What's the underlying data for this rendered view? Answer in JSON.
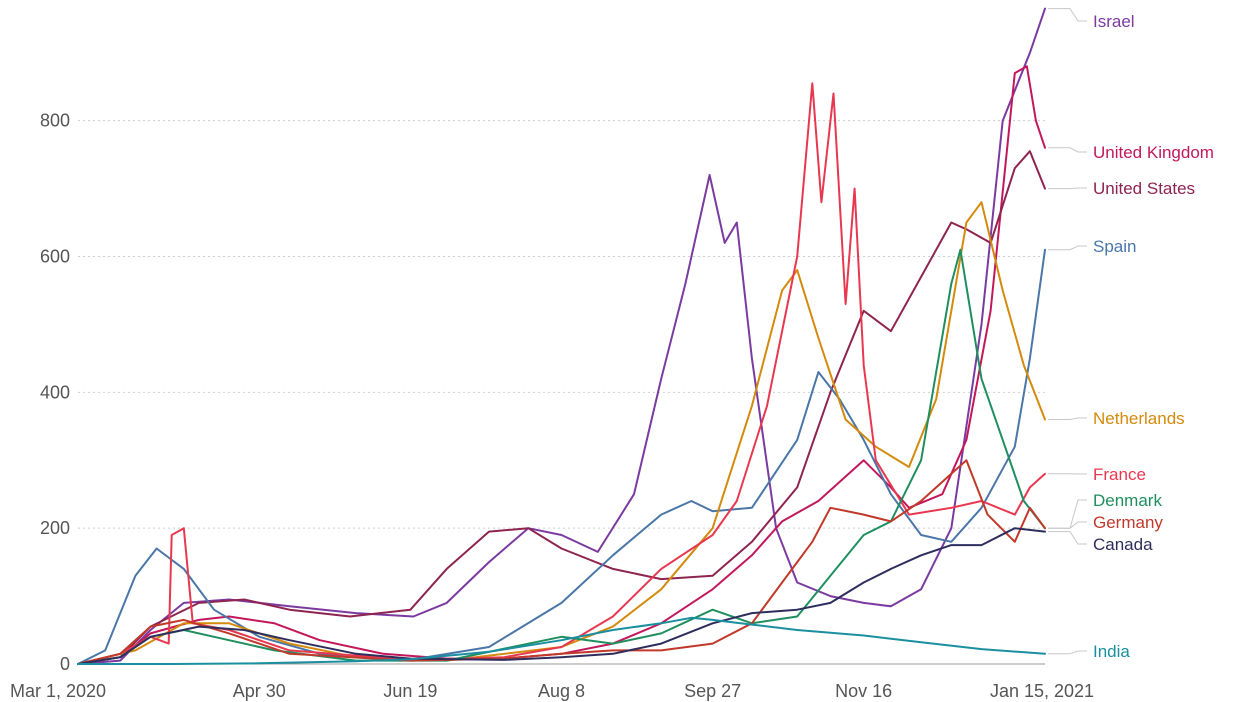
{
  "chart_data": {
    "type": "line",
    "title": "",
    "xlabel": "",
    "ylabel": "",
    "xlim": [
      "2020-03-01",
      "2021-01-15"
    ],
    "ylim": [
      0,
      960
    ],
    "grid": true,
    "legend": "direct labels at right end",
    "x_ticks": [
      "2020-03-01",
      "2020-04-30",
      "2020-06-19",
      "2020-08-08",
      "2020-09-27",
      "2020-11-16",
      "2021-01-15"
    ],
    "x_tick_labels": [
      "Mar 1, 2020",
      "Apr 30",
      "Jun 19",
      "Aug 8",
      "Sep 27",
      "Nov 16",
      "Jan 15, 2021"
    ],
    "y_ticks": [
      0,
      200,
      400,
      600,
      800
    ],
    "y_tick_labels": [
      "0",
      "200",
      "400",
      "600",
      "800"
    ],
    "series": [
      {
        "name": "Israel",
        "color": "#7b3aa0",
        "points": [
          [
            "2020-03-01",
            0
          ],
          [
            "2020-03-15",
            5
          ],
          [
            "2020-03-25",
            50
          ],
          [
            "2020-04-05",
            90
          ],
          [
            "2020-04-20",
            95
          ],
          [
            "2020-05-10",
            85
          ],
          [
            "2020-06-01",
            75
          ],
          [
            "2020-06-20",
            70
          ],
          [
            "2020-07-01",
            90
          ],
          [
            "2020-07-15",
            150
          ],
          [
            "2020-07-28",
            200
          ],
          [
            "2020-08-08",
            190
          ],
          [
            "2020-08-20",
            165
          ],
          [
            "2020-09-01",
            250
          ],
          [
            "2020-09-10",
            420
          ],
          [
            "2020-09-18",
            560
          ],
          [
            "2020-09-26",
            720
          ],
          [
            "2020-10-01",
            620
          ],
          [
            "2020-10-05",
            650
          ],
          [
            "2020-10-10",
            450
          ],
          [
            "2020-10-18",
            200
          ],
          [
            "2020-10-25",
            120
          ],
          [
            "2020-11-05",
            100
          ],
          [
            "2020-11-16",
            90
          ],
          [
            "2020-11-25",
            85
          ],
          [
            "2020-12-05",
            110
          ],
          [
            "2020-12-15",
            200
          ],
          [
            "2020-12-25",
            500
          ],
          [
            "2021-01-01",
            800
          ],
          [
            "2021-01-10",
            900
          ],
          [
            "2021-01-15",
            965
          ]
        ]
      },
      {
        "name": "United Kingdom",
        "color": "#c2185b",
        "points": [
          [
            "2020-03-01",
            0
          ],
          [
            "2020-03-15",
            10
          ],
          [
            "2020-03-25",
            45
          ],
          [
            "2020-04-10",
            65
          ],
          [
            "2020-04-20",
            70
          ],
          [
            "2020-05-05",
            60
          ],
          [
            "2020-05-20",
            35
          ],
          [
            "2020-06-10",
            15
          ],
          [
            "2020-07-01",
            8
          ],
          [
            "2020-07-20",
            8
          ],
          [
            "2020-08-08",
            15
          ],
          [
            "2020-08-25",
            30
          ],
          [
            "2020-09-10",
            60
          ],
          [
            "2020-09-27",
            110
          ],
          [
            "2020-10-10",
            160
          ],
          [
            "2020-10-20",
            210
          ],
          [
            "2020-11-01",
            240
          ],
          [
            "2020-11-16",
            300
          ],
          [
            "2020-11-25",
            260
          ],
          [
            "2020-12-01",
            230
          ],
          [
            "2020-12-12",
            250
          ],
          [
            "2020-12-20",
            330
          ],
          [
            "2020-12-28",
            520
          ],
          [
            "2021-01-05",
            870
          ],
          [
            "2021-01-09",
            880
          ],
          [
            "2021-01-12",
            800
          ],
          [
            "2021-01-15",
            760
          ]
        ]
      },
      {
        "name": "United States",
        "color": "#8e2450",
        "points": [
          [
            "2020-03-01",
            0
          ],
          [
            "2020-03-15",
            10
          ],
          [
            "2020-03-25",
            55
          ],
          [
            "2020-04-10",
            90
          ],
          [
            "2020-04-25",
            95
          ],
          [
            "2020-05-10",
            80
          ],
          [
            "2020-05-30",
            70
          ],
          [
            "2020-06-19",
            80
          ],
          [
            "2020-07-01",
            140
          ],
          [
            "2020-07-15",
            195
          ],
          [
            "2020-07-28",
            200
          ],
          [
            "2020-08-08",
            170
          ],
          [
            "2020-08-25",
            140
          ],
          [
            "2020-09-10",
            125
          ],
          [
            "2020-09-27",
            130
          ],
          [
            "2020-10-10",
            180
          ],
          [
            "2020-10-25",
            260
          ],
          [
            "2020-11-05",
            400
          ],
          [
            "2020-11-16",
            520
          ],
          [
            "2020-11-25",
            490
          ],
          [
            "2020-12-05",
            570
          ],
          [
            "2020-12-15",
            650
          ],
          [
            "2020-12-20",
            640
          ],
          [
            "2020-12-28",
            620
          ],
          [
            "2021-01-05",
            730
          ],
          [
            "2021-01-10",
            755
          ],
          [
            "2021-01-15",
            700
          ]
        ]
      },
      {
        "name": "Spain",
        "color": "#4a76a8",
        "points": [
          [
            "2020-03-01",
            0
          ],
          [
            "2020-03-10",
            20
          ],
          [
            "2020-03-20",
            130
          ],
          [
            "2020-03-27",
            170
          ],
          [
            "2020-04-05",
            140
          ],
          [
            "2020-04-15",
            80
          ],
          [
            "2020-04-30",
            40
          ],
          [
            "2020-05-20",
            15
          ],
          [
            "2020-06-19",
            6
          ],
          [
            "2020-07-15",
            25
          ],
          [
            "2020-08-08",
            90
          ],
          [
            "2020-08-25",
            160
          ],
          [
            "2020-09-10",
            220
          ],
          [
            "2020-09-20",
            240
          ],
          [
            "2020-09-27",
            225
          ],
          [
            "2020-10-10",
            230
          ],
          [
            "2020-10-25",
            330
          ],
          [
            "2020-11-01",
            430
          ],
          [
            "2020-11-08",
            390
          ],
          [
            "2020-11-16",
            330
          ],
          [
            "2020-11-25",
            250
          ],
          [
            "2020-12-05",
            190
          ],
          [
            "2020-12-15",
            180
          ],
          [
            "2020-12-25",
            230
          ],
          [
            "2021-01-05",
            320
          ],
          [
            "2021-01-10",
            450
          ],
          [
            "2021-01-15",
            610
          ]
        ]
      },
      {
        "name": "Netherlands",
        "color": "#d48a0c",
        "points": [
          [
            "2020-03-01",
            0
          ],
          [
            "2020-03-20",
            20
          ],
          [
            "2020-04-05",
            60
          ],
          [
            "2020-04-20",
            60
          ],
          [
            "2020-05-10",
            30
          ],
          [
            "2020-06-01",
            10
          ],
          [
            "2020-07-01",
            5
          ],
          [
            "2020-08-08",
            25
          ],
          [
            "2020-08-25",
            55
          ],
          [
            "2020-09-10",
            110
          ],
          [
            "2020-09-27",
            200
          ],
          [
            "2020-10-10",
            380
          ],
          [
            "2020-10-20",
            550
          ],
          [
            "2020-10-25",
            580
          ],
          [
            "2020-11-01",
            480
          ],
          [
            "2020-11-10",
            360
          ],
          [
            "2020-11-20",
            320
          ],
          [
            "2020-12-01",
            290
          ],
          [
            "2020-12-10",
            390
          ],
          [
            "2020-12-20",
            650
          ],
          [
            "2020-12-25",
            680
          ],
          [
            "2021-01-01",
            550
          ],
          [
            "2021-01-08",
            440
          ],
          [
            "2021-01-15",
            360
          ]
        ]
      },
      {
        "name": "France",
        "color": "#e8384f",
        "points": [
          [
            "2020-03-01",
            0
          ],
          [
            "2020-03-15",
            15
          ],
          [
            "2020-03-25",
            40
          ],
          [
            "2020-03-31",
            30
          ],
          [
            "2020-04-01",
            190
          ],
          [
            "2020-04-05",
            200
          ],
          [
            "2020-04-08",
            60
          ],
          [
            "2020-04-20",
            50
          ],
          [
            "2020-05-10",
            20
          ],
          [
            "2020-06-19",
            6
          ],
          [
            "2020-07-20",
            10
          ],
          [
            "2020-08-08",
            25
          ],
          [
            "2020-08-25",
            70
          ],
          [
            "2020-09-10",
            140
          ],
          [
            "2020-09-27",
            190
          ],
          [
            "2020-10-05",
            240
          ],
          [
            "2020-10-15",
            380
          ],
          [
            "2020-10-25",
            600
          ],
          [
            "2020-10-30",
            855
          ],
          [
            "2020-11-02",
            680
          ],
          [
            "2020-11-06",
            840
          ],
          [
            "2020-11-10",
            530
          ],
          [
            "2020-11-13",
            700
          ],
          [
            "2020-11-16",
            440
          ],
          [
            "2020-11-20",
            300
          ],
          [
            "2020-12-01",
            220
          ],
          [
            "2020-12-15",
            230
          ],
          [
            "2020-12-25",
            240
          ],
          [
            "2021-01-05",
            220
          ],
          [
            "2021-01-10",
            260
          ],
          [
            "2021-01-15",
            280
          ]
        ]
      },
      {
        "name": "Denmark",
        "color": "#1f8f5f",
        "points": [
          [
            "2020-03-01",
            0
          ],
          [
            "2020-03-15",
            10
          ],
          [
            "2020-03-25",
            40
          ],
          [
            "2020-04-05",
            50
          ],
          [
            "2020-04-15",
            40
          ],
          [
            "2020-05-05",
            20
          ],
          [
            "2020-06-01",
            5
          ],
          [
            "2020-07-01",
            5
          ],
          [
            "2020-08-08",
            40
          ],
          [
            "2020-08-25",
            30
          ],
          [
            "2020-09-10",
            45
          ],
          [
            "2020-09-27",
            80
          ],
          [
            "2020-10-10",
            60
          ],
          [
            "2020-10-25",
            70
          ],
          [
            "2020-11-05",
            130
          ],
          [
            "2020-11-16",
            190
          ],
          [
            "2020-11-25",
            210
          ],
          [
            "2020-12-05",
            300
          ],
          [
            "2020-12-15",
            560
          ],
          [
            "2020-12-18",
            610
          ],
          [
            "2020-12-25",
            420
          ],
          [
            "2021-01-01",
            330
          ],
          [
            "2021-01-08",
            240
          ],
          [
            "2021-01-15",
            200
          ]
        ]
      },
      {
        "name": "Germany",
        "color": "#c0392b",
        "points": [
          [
            "2020-03-01",
            0
          ],
          [
            "2020-03-15",
            15
          ],
          [
            "2020-03-25",
            55
          ],
          [
            "2020-04-05",
            65
          ],
          [
            "2020-04-20",
            45
          ],
          [
            "2020-05-10",
            15
          ],
          [
            "2020-06-19",
            5
          ],
          [
            "2020-07-20",
            8
          ],
          [
            "2020-08-08",
            15
          ],
          [
            "2020-08-25",
            20
          ],
          [
            "2020-09-10",
            20
          ],
          [
            "2020-09-27",
            30
          ],
          [
            "2020-10-10",
            60
          ],
          [
            "2020-10-20",
            120
          ],
          [
            "2020-10-30",
            180
          ],
          [
            "2020-11-05",
            230
          ],
          [
            "2020-11-16",
            220
          ],
          [
            "2020-11-25",
            210
          ],
          [
            "2020-12-05",
            240
          ],
          [
            "2020-12-15",
            280
          ],
          [
            "2020-12-20",
            300
          ],
          [
            "2020-12-27",
            220
          ],
          [
            "2021-01-05",
            180
          ],
          [
            "2021-01-10",
            230
          ],
          [
            "2021-01-15",
            200
          ]
        ]
      },
      {
        "name": "Canada",
        "color": "#2e2e5e",
        "points": [
          [
            "2020-03-01",
            0
          ],
          [
            "2020-03-15",
            10
          ],
          [
            "2020-03-25",
            40
          ],
          [
            "2020-04-10",
            55
          ],
          [
            "2020-04-25",
            50
          ],
          [
            "2020-05-10",
            35
          ],
          [
            "2020-06-01",
            15
          ],
          [
            "2020-06-19",
            8
          ],
          [
            "2020-07-20",
            6
          ],
          [
            "2020-08-08",
            10
          ],
          [
            "2020-08-25",
            15
          ],
          [
            "2020-09-10",
            30
          ],
          [
            "2020-09-27",
            60
          ],
          [
            "2020-10-10",
            75
          ],
          [
            "2020-10-25",
            80
          ],
          [
            "2020-11-05",
            90
          ],
          [
            "2020-11-16",
            120
          ],
          [
            "2020-11-25",
            140
          ],
          [
            "2020-12-05",
            160
          ],
          [
            "2020-12-15",
            175
          ],
          [
            "2020-12-25",
            175
          ],
          [
            "2021-01-05",
            200
          ],
          [
            "2021-01-15",
            195
          ]
        ]
      },
      {
        "name": "India",
        "color": "#1a8fa0",
        "points": [
          [
            "2020-03-01",
            0
          ],
          [
            "2020-04-01",
            0
          ],
          [
            "2020-04-30",
            1
          ],
          [
            "2020-06-01",
            4
          ],
          [
            "2020-06-19",
            7
          ],
          [
            "2020-07-15",
            18
          ],
          [
            "2020-08-08",
            35
          ],
          [
            "2020-08-25",
            50
          ],
          [
            "2020-09-10",
            60
          ],
          [
            "2020-09-20",
            68
          ],
          [
            "2020-09-27",
            65
          ],
          [
            "2020-10-10",
            58
          ],
          [
            "2020-10-25",
            50
          ],
          [
            "2020-11-16",
            42
          ],
          [
            "2020-12-05",
            32
          ],
          [
            "2020-12-25",
            22
          ],
          [
            "2021-01-15",
            15
          ]
        ]
      }
    ]
  }
}
